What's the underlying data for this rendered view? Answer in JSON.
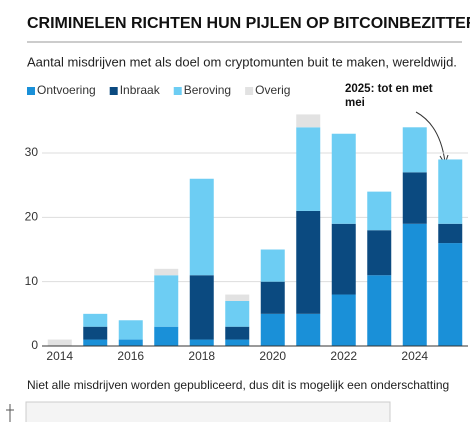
{
  "chart_data": {
    "type": "stacked_bar",
    "title": "CRIMINELEN RICHTEN HUN PIJLEN OP BITCOINBEZITTERS",
    "subtitle": "Aantal misdrijven met als doel om cryptomunten buit te maken, wereldwijd.",
    "annotation": "2025: tot en met mei",
    "footnote": "Niet alle misdrijven worden gepubliceerd, dus dit is mogelijk een onderschatting",
    "categories": [
      "2014",
      null,
      "2016",
      null,
      "2018",
      null,
      "2020",
      null,
      "2022",
      null,
      "2024",
      null
    ],
    "series": [
      {
        "name": "Ontvoering",
        "color": "#1a90d8",
        "values": [
          0,
          1,
          1,
          3,
          1,
          1,
          5,
          5,
          8,
          11,
          19,
          16
        ]
      },
      {
        "name": "Inbraak",
        "color": "#0b4a80",
        "values": [
          0,
          2,
          0,
          0,
          10,
          2,
          5,
          16,
          11,
          7,
          8,
          3
        ]
      },
      {
        "name": "Beroving",
        "color": "#6dcdf3",
        "values": [
          0,
          2,
          3,
          8,
          15,
          4,
          5,
          13,
          14,
          6,
          7,
          10
        ]
      },
      {
        "name": "Overig",
        "color": "#e2e2e2",
        "values": [
          1,
          0,
          0,
          1,
          0,
          1,
          0,
          2,
          0,
          0,
          0,
          0
        ]
      }
    ],
    "ylim": [
      0,
      37
    ],
    "yticks": [
      0,
      10,
      20,
      30
    ],
    "grid": true
  }
}
